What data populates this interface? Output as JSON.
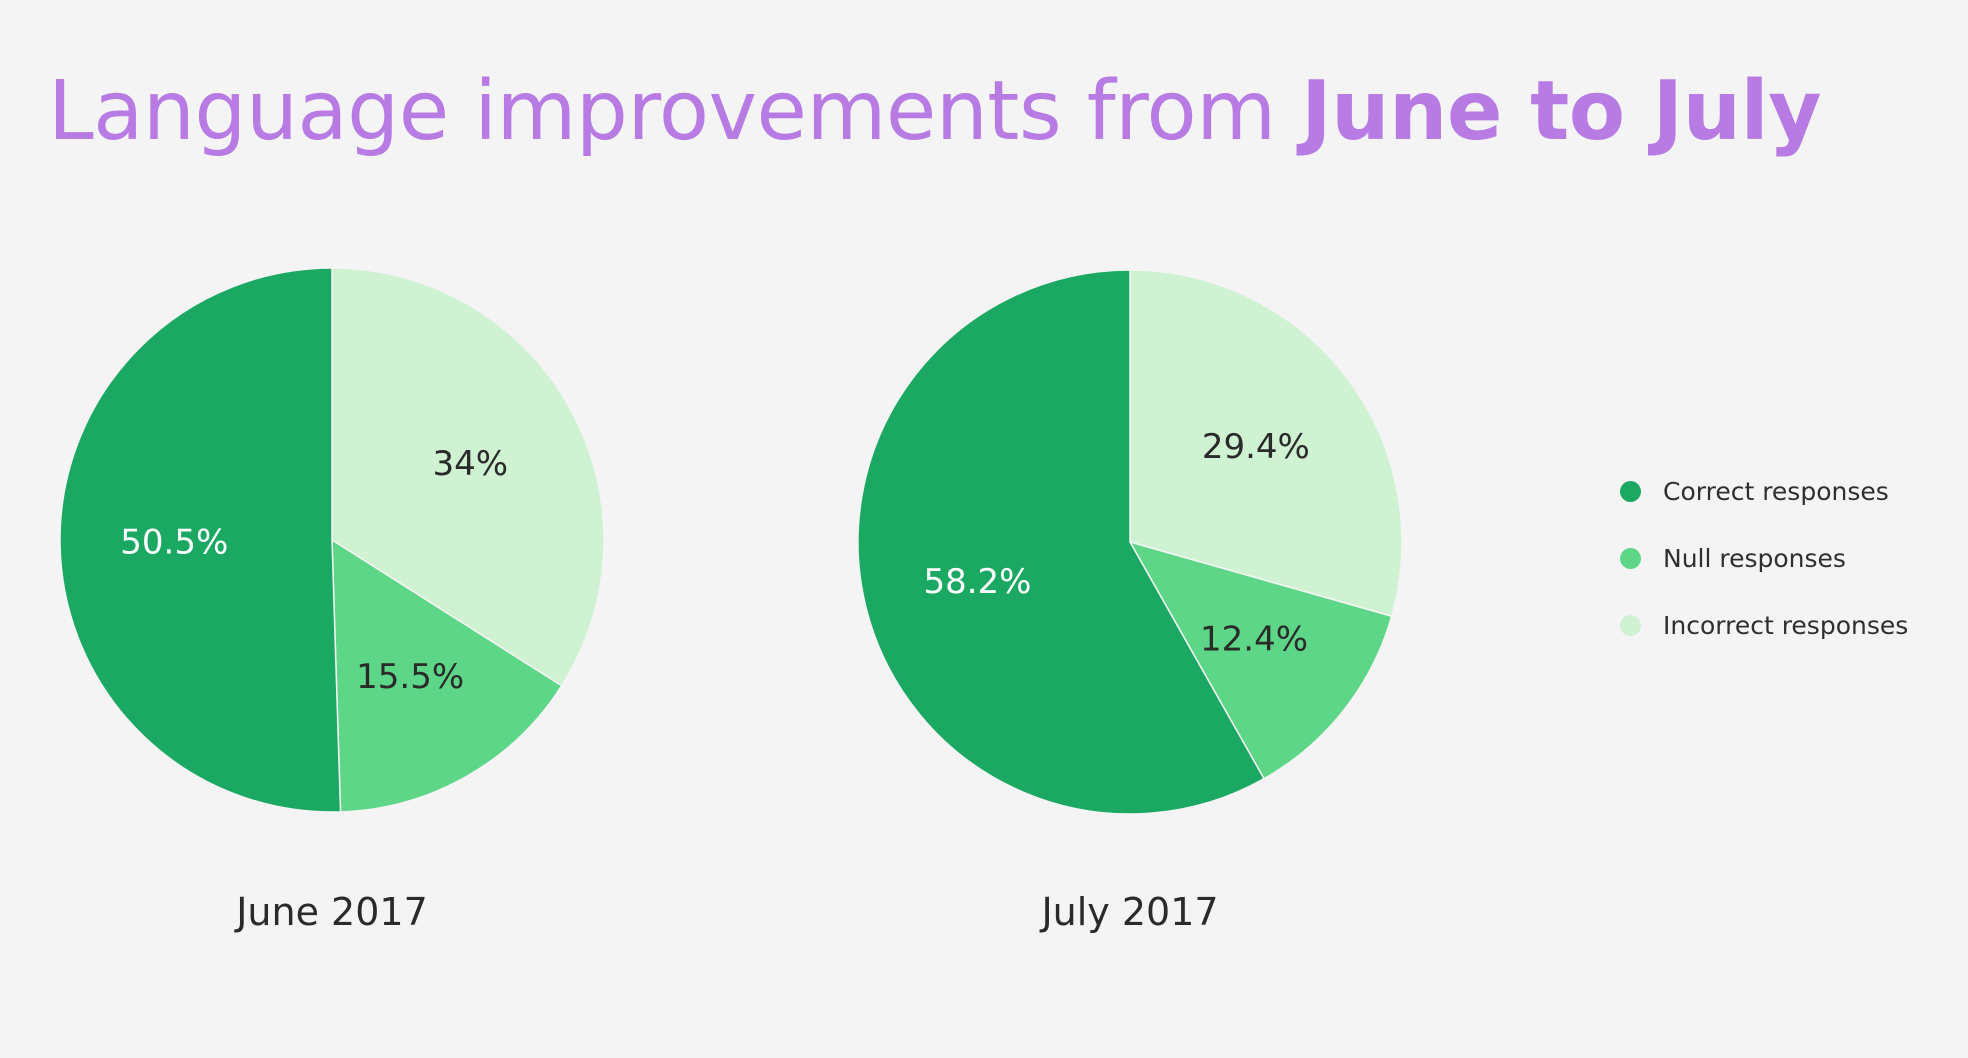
{
  "title": {
    "regular": "Language improvements from",
    "bold": "June to July"
  },
  "colors": {
    "background": "#f4f4f4",
    "title": "#b77be3",
    "correct": "#1ba862",
    "null": "#5ed687",
    "incorrect": "#cff2d3"
  },
  "legend": {
    "items": [
      {
        "label": "Correct responses",
        "color": "#1ba862"
      },
      {
        "label": "Null responses",
        "color": "#5ed687"
      },
      {
        "label": "Incorrect responses",
        "color": "#cff2d3"
      }
    ]
  },
  "chart_data": [
    {
      "type": "pie",
      "title": "June 2017",
      "categories": [
        "Incorrect responses",
        "Null responses",
        "Correct responses"
      ],
      "values": [
        34,
        15.5,
        50.5
      ],
      "labels": [
        "34%",
        "15.5%",
        "50.5%"
      ],
      "colors": [
        "#cff2d3",
        "#5ed687",
        "#1ba862"
      ],
      "label_colors": [
        "#2a2a2a",
        "#2a2a2a",
        "#ffffff"
      ],
      "start": "top, clockwise",
      "legend": "right"
    },
    {
      "type": "pie",
      "title": "July 2017",
      "categories": [
        "Incorrect responses",
        "Null responses",
        "Correct responses"
      ],
      "values": [
        29.4,
        12.4,
        58.2
      ],
      "labels": [
        "29.4%",
        "12.4%",
        "58.2%"
      ],
      "colors": [
        "#cff2d3",
        "#5ed687",
        "#1ba862"
      ],
      "label_colors": [
        "#2a2a2a",
        "#2a2a2a",
        "#ffffff"
      ],
      "start": "top, clockwise",
      "legend": "right"
    }
  ]
}
